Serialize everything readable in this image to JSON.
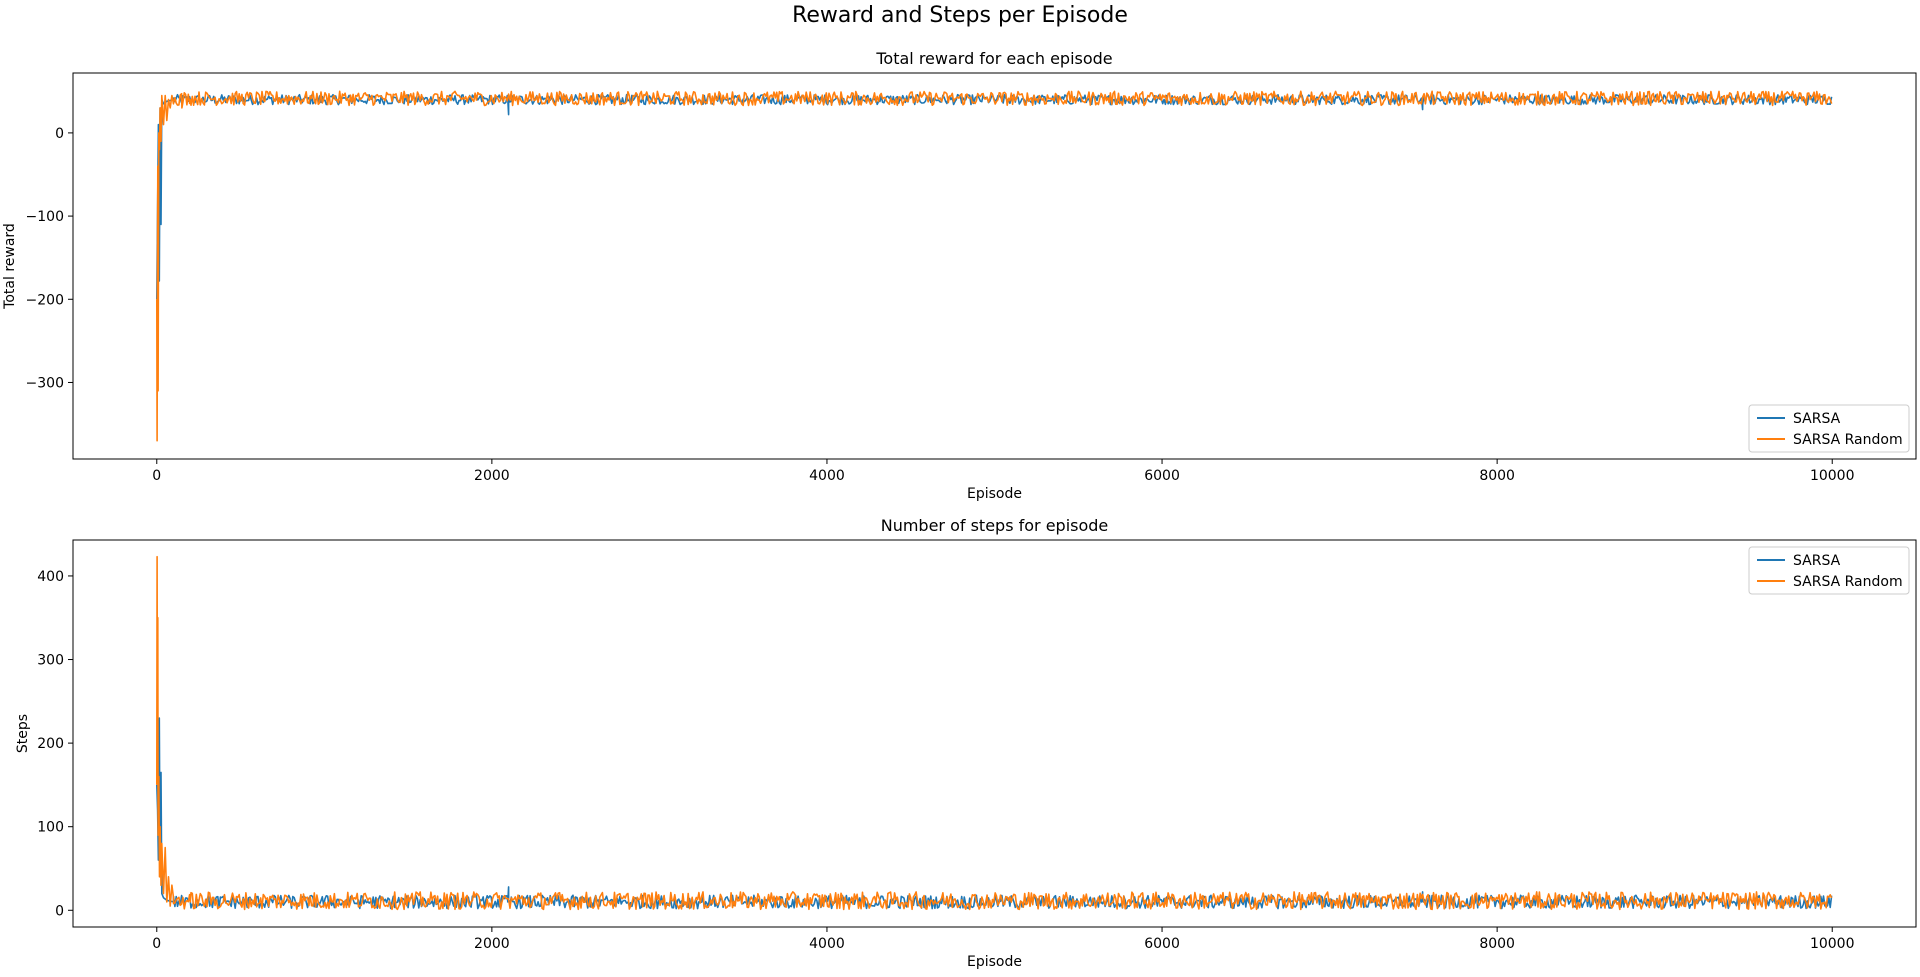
{
  "figure": {
    "suptitle": "Reward and Steps per Episode"
  },
  "colors": {
    "sarsa": "#1f77b4",
    "sarsa_random": "#ff7f0e",
    "axis": "#000000",
    "legend_border": "#cccccc"
  },
  "chart_data": [
    {
      "type": "line",
      "title": "Total reward for each episode",
      "xlabel": "Episode",
      "ylabel": "Total reward",
      "xlim": [
        -500,
        10500
      ],
      "ylim": [
        -392,
        72
      ],
      "xticks": [
        0,
        2000,
        4000,
        6000,
        8000,
        10000
      ],
      "yticks": [
        -300,
        -200,
        -100,
        0
      ],
      "grid": false,
      "legend": {
        "position": "lower-right",
        "entries": [
          "SARSA",
          "SARSA Random"
        ]
      },
      "series": [
        {
          "name": "SARSA",
          "color": "#1f77b4",
          "x": [
            0,
            5,
            10,
            15,
            20,
            25,
            30,
            40,
            60,
            100,
            200,
            2095,
            2100,
            2105,
            7550,
            7555,
            7560,
            10000
          ],
          "y": [
            -200,
            -90,
            10,
            -178,
            30,
            -110,
            40,
            35,
            38,
            40,
            40,
            40,
            22,
            40,
            40,
            28,
            40,
            40
          ],
          "noise": {
            "x_start": 100,
            "x_end": 10000,
            "min": 34,
            "max": 46
          }
        },
        {
          "name": "SARSA Random",
          "color": "#ff7f0e",
          "x": [
            0,
            2,
            4,
            6,
            8,
            12,
            16,
            20,
            25,
            30,
            40,
            50,
            60,
            70,
            80,
            90,
            100,
            150,
            200,
            10000
          ],
          "y": [
            -200,
            -370,
            -180,
            -40,
            -310,
            0,
            -20,
            30,
            -10,
            45,
            10,
            45,
            15,
            40,
            30,
            45,
            35,
            30,
            40,
            40
          ],
          "noise": {
            "x_start": 100,
            "x_end": 10000,
            "min": 33,
            "max": 50
          }
        }
      ]
    },
    {
      "type": "line",
      "title": "Number of steps for episode",
      "xlabel": "Episode",
      "ylabel": "Steps",
      "xlim": [
        -500,
        10500
      ],
      "ylim": [
        -20,
        443
      ],
      "xticks": [
        0,
        2000,
        4000,
        6000,
        8000,
        10000
      ],
      "yticks": [
        0,
        100,
        200,
        300,
        400
      ],
      "grid": false,
      "legend": {
        "position": "top-right",
        "entries": [
          "SARSA",
          "SARSA Random"
        ]
      },
      "series": [
        {
          "name": "SARSA",
          "color": "#1f77b4",
          "x": [
            0,
            5,
            10,
            15,
            20,
            25,
            30,
            40,
            60,
            100,
            200,
            2095,
            2100,
            2105,
            7550,
            7555,
            7560,
            10000
          ],
          "y": [
            150,
            120,
            60,
            230,
            40,
            165,
            20,
            15,
            12,
            10,
            10,
            10,
            28,
            10,
            10,
            22,
            10,
            10
          ],
          "noise": {
            "x_start": 100,
            "x_end": 10000,
            "min": 2,
            "max": 18
          }
        },
        {
          "name": "SARSA Random",
          "color": "#ff7f0e",
          "x": [
            0,
            2,
            4,
            6,
            8,
            12,
            16,
            20,
            25,
            30,
            40,
            50,
            60,
            70,
            80,
            90,
            100,
            150,
            200,
            10000
          ],
          "y": [
            150,
            423,
            180,
            350,
            90,
            160,
            40,
            100,
            30,
            80,
            20,
            75,
            10,
            40,
            5,
            30,
            15,
            10,
            10,
            10
          ],
          "noise": {
            "x_start": 100,
            "x_end": 10000,
            "min": 1,
            "max": 22
          }
        }
      ]
    }
  ]
}
